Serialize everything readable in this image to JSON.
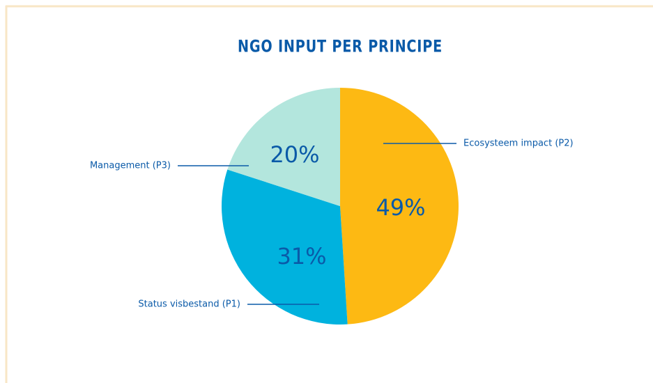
{
  "chart_data": {
    "type": "pie",
    "title": "NGO INPUT PER PRINCIPE",
    "categories": [
      "Ecosysteem impact (P2)",
      "Status visbestand (P1)",
      "Management (P3)"
    ],
    "values": [
      49,
      31,
      20
    ],
    "value_labels": [
      "49%",
      "31%",
      "20%"
    ],
    "colors": [
      "#fdb913",
      "#00b2de",
      "#b3e6dd"
    ]
  }
}
